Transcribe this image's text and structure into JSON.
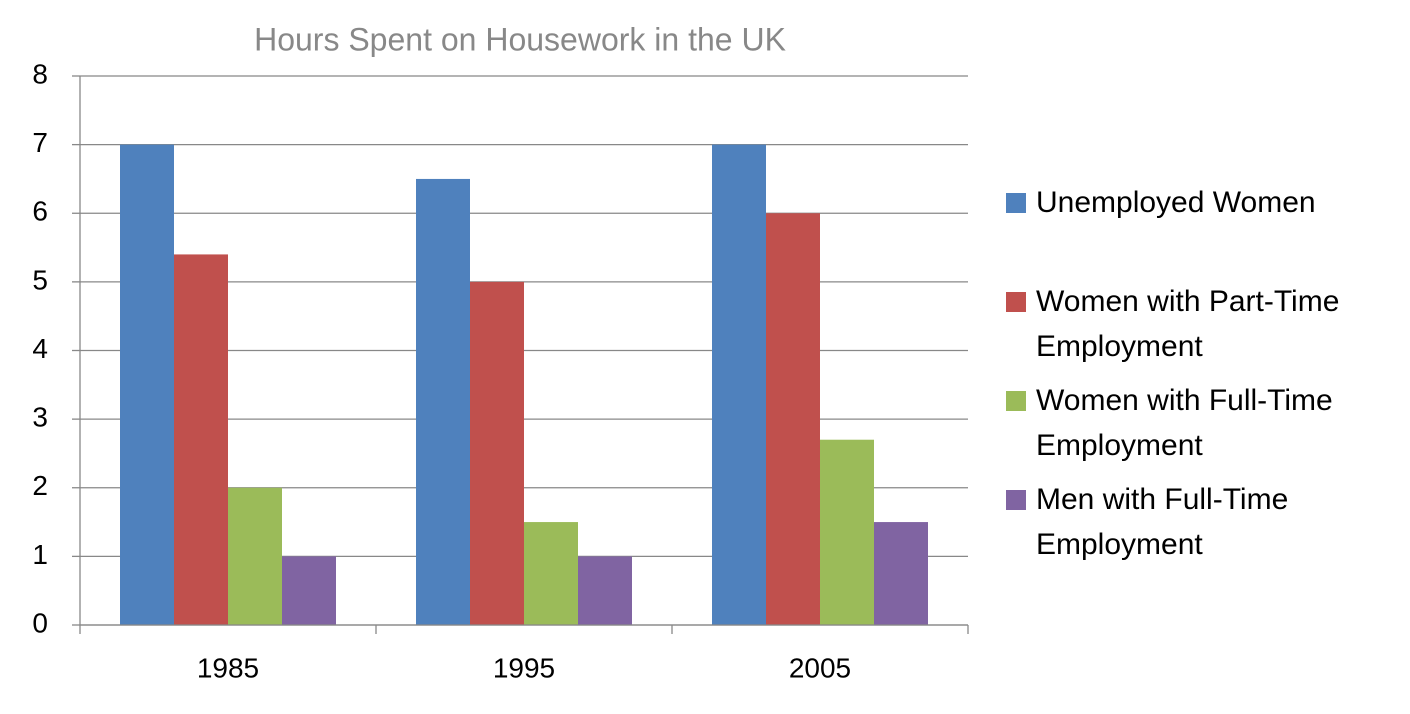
{
  "chart_data": {
    "type": "bar",
    "title": "Hours Spent on Housework in the UK",
    "categories": [
      "1985",
      "1995",
      "2005"
    ],
    "series": [
      {
        "name": "Unemployed Women",
        "color": "#4f81bd",
        "values": [
          7,
          6.5,
          7
        ]
      },
      {
        "name": "Women with Part-Time Employment",
        "color": "#c0504d",
        "values": [
          5.4,
          5,
          6
        ]
      },
      {
        "name": "Women with Full-Time Employment",
        "color": "#9bbb59",
        "values": [
          2,
          1.5,
          2.7
        ]
      },
      {
        "name": "Men with Full-Time Employment",
        "color": "#8064a2",
        "values": [
          1,
          1,
          1.5
        ]
      }
    ],
    "ylim": [
      0,
      8
    ],
    "yticks": [
      0,
      1,
      2,
      3,
      4,
      5,
      6,
      7,
      8
    ],
    "grid": true
  }
}
